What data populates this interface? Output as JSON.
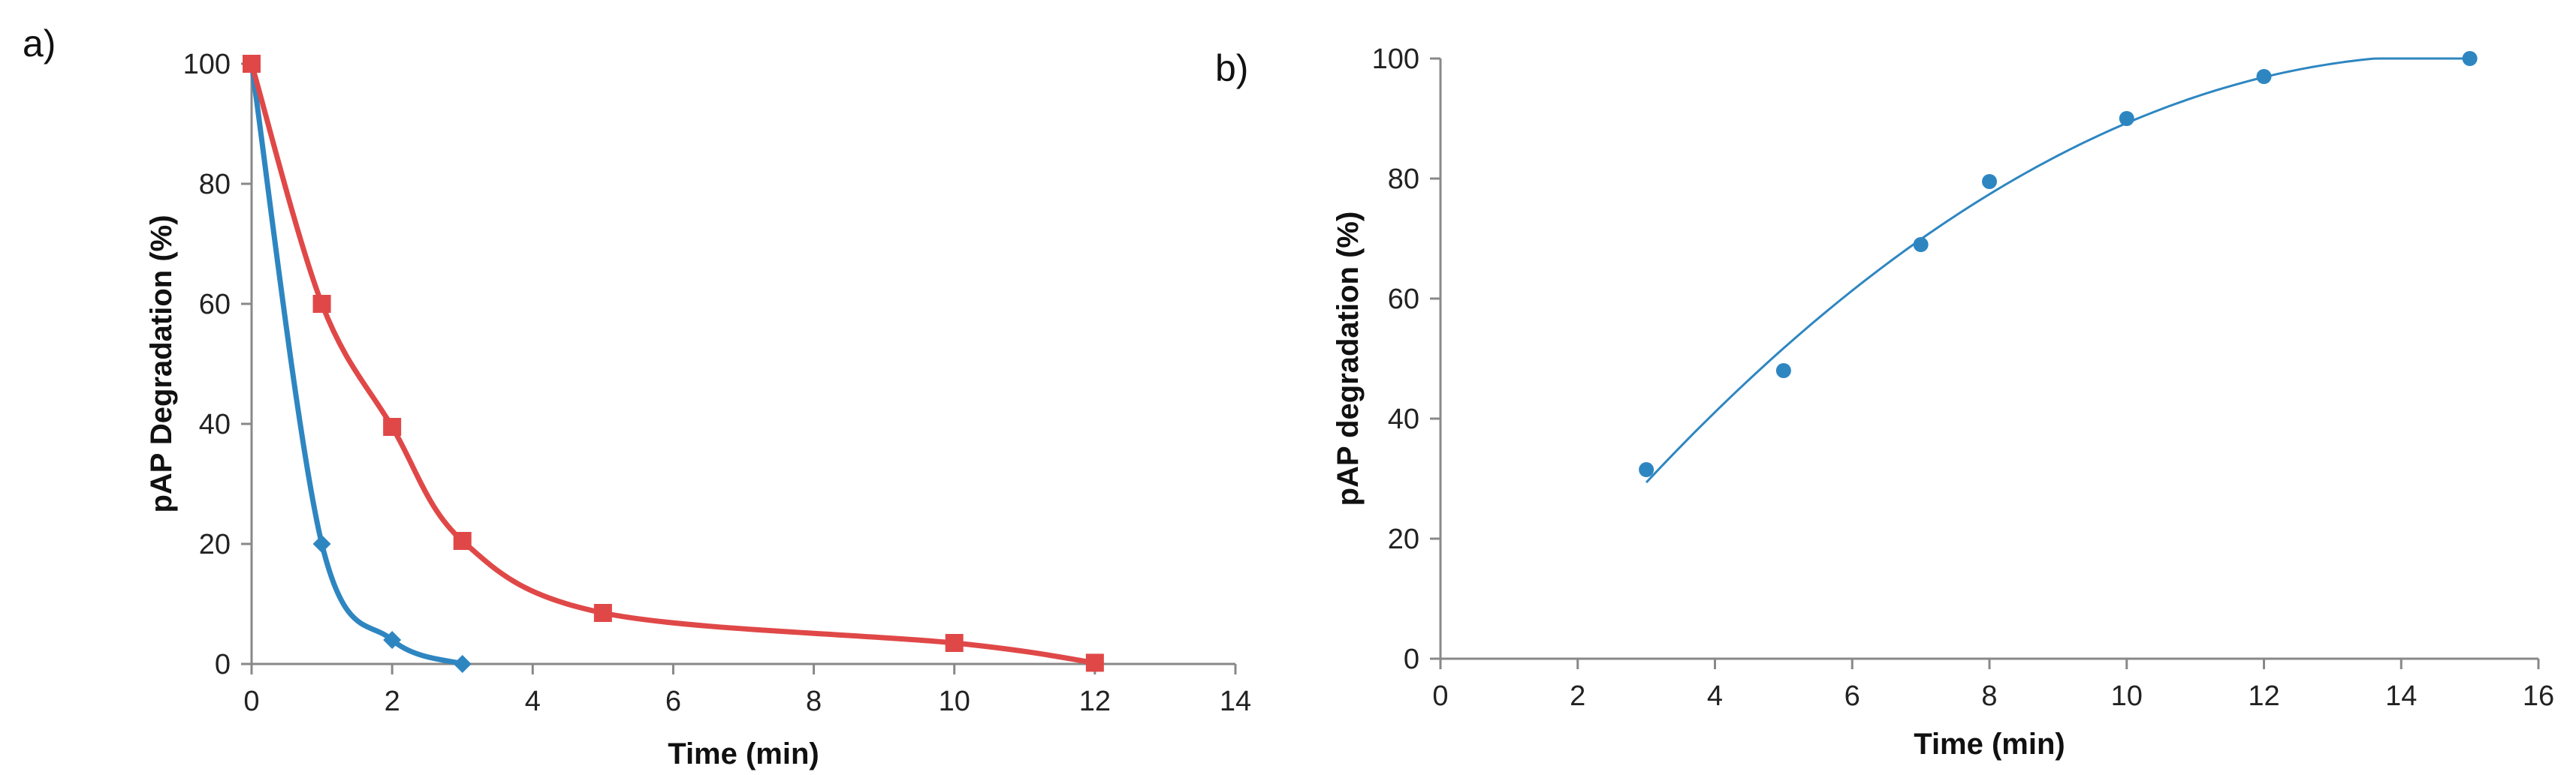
{
  "panels": {
    "a": {
      "label": "a)"
    },
    "b": {
      "label": "b)"
    }
  },
  "chart_data": [
    {
      "type": "line",
      "smoothed": true,
      "title": "",
      "xlabel": "Time (min)",
      "ylabel": "pAP Degradation (%)",
      "xlim": [
        0,
        14
      ],
      "ylim": [
        0,
        100
      ],
      "xticks": [
        "0",
        "2",
        "4",
        "6",
        "8",
        "10",
        "12",
        "14"
      ],
      "yticks": [
        "0",
        "20",
        "40",
        "60",
        "80",
        "100"
      ],
      "grid": false,
      "legend": "none",
      "series": [
        {
          "marker": "diamond",
          "color": "#2E86C1",
          "x": [
            0,
            1,
            2,
            3
          ],
          "y": [
            100,
            20,
            4,
            0
          ]
        },
        {
          "marker": "square",
          "color": "#E04848",
          "x": [
            0,
            1,
            2,
            3,
            5,
            10,
            12
          ],
          "y": [
            100,
            60,
            39.5,
            20.5,
            8.5,
            3.5,
            0.2
          ]
        }
      ]
    },
    {
      "type": "scatter",
      "title": "",
      "xlabel": "Time (min)",
      "ylabel": "pAP degradation (%)",
      "xlim": [
        0,
        16
      ],
      "ylim": [
        0,
        100
      ],
      "xticks": [
        "0",
        "2",
        "4",
        "6",
        "8",
        "10",
        "12",
        "14",
        "16"
      ],
      "yticks": [
        "0",
        "20",
        "40",
        "60",
        "80",
        "100"
      ],
      "grid": false,
      "legend": "none",
      "series": [
        {
          "marker": "circle",
          "color": "#2E86C1",
          "x": [
            3,
            5,
            7,
            8,
            10,
            12,
            15
          ],
          "y": [
            31.5,
            48,
            69,
            79.5,
            90,
            97,
            100
          ]
        }
      ],
      "trendline": {
        "type": "polynomial",
        "order": 2,
        "color": "#2E86C1",
        "x_range": [
          3,
          15
        ],
        "peak": 100
      }
    }
  ]
}
